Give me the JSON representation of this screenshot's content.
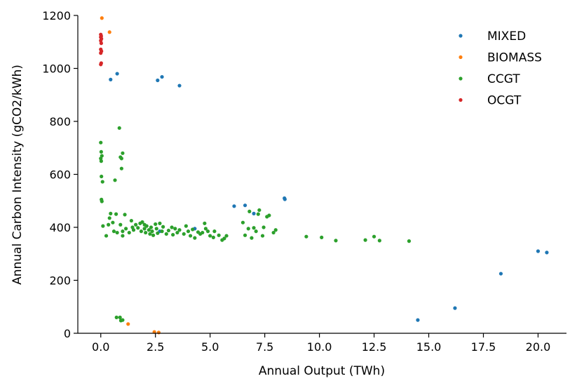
{
  "chart_data": {
    "type": "scatter",
    "xlabel": "Annual Output (TWh)",
    "ylabel": "Annual Carbon Intensity (gCO2/kWh)",
    "xlim": [
      -1.05,
      21.3
    ],
    "ylim": [
      0,
      1200
    ],
    "x_ticks": [
      "0.0",
      "2.5",
      "5.0",
      "7.5",
      "10.0",
      "12.5",
      "15.0",
      "17.5",
      "20.0"
    ],
    "y_ticks": [
      "0",
      "200",
      "400",
      "600",
      "800",
      "1000",
      "1200"
    ],
    "grid": false,
    "legend_position": "top-right",
    "series": [
      {
        "name": "MIXED",
        "color": "#1f77b4",
        "points": [
          [
            0.45,
            958
          ],
          [
            0.75,
            980
          ],
          [
            2.6,
            955
          ],
          [
            2.8,
            968
          ],
          [
            3.6,
            935
          ],
          [
            2.7,
            385
          ],
          [
            4.3,
            395
          ],
          [
            6.1,
            480
          ],
          [
            6.6,
            483
          ],
          [
            7.0,
            452
          ],
          [
            8.4,
            510
          ],
          [
            8.42,
            506
          ],
          [
            14.5,
            50
          ],
          [
            16.2,
            95
          ],
          [
            18.3,
            225
          ],
          [
            20.0,
            310
          ],
          [
            20.4,
            305
          ]
        ]
      },
      {
        "name": "BIOMASS",
        "color": "#ff7f0e",
        "points": [
          [
            0.05,
            1190
          ],
          [
            0.4,
            1137
          ],
          [
            1.25,
            35
          ],
          [
            2.45,
            5
          ],
          [
            2.65,
            3
          ]
        ]
      },
      {
        "name": "CCGT",
        "color": "#2ca02c",
        "points": [
          [
            0.0,
            720
          ],
          [
            0.02,
            685
          ],
          [
            0.05,
            670
          ],
          [
            0.0,
            660
          ],
          [
            0.02,
            650
          ],
          [
            0.03,
            592
          ],
          [
            0.08,
            572
          ],
          [
            0.03,
            505
          ],
          [
            0.05,
            498
          ],
          [
            0.1,
            405
          ],
          [
            0.25,
            368
          ],
          [
            0.35,
            410
          ],
          [
            0.4,
            435
          ],
          [
            0.45,
            452
          ],
          [
            0.55,
            418
          ],
          [
            0.6,
            385
          ],
          [
            0.65,
            578
          ],
          [
            0.7,
            450
          ],
          [
            0.75,
            380
          ],
          [
            0.85,
            775
          ],
          [
            0.9,
            665
          ],
          [
            0.95,
            660
          ],
          [
            0.95,
            622
          ],
          [
            1.0,
            680
          ],
          [
            0.9,
            410
          ],
          [
            1.0,
            385
          ],
          [
            1.1,
            448
          ],
          [
            1.15,
            395
          ],
          [
            1.0,
            368
          ],
          [
            1.3,
            380
          ],
          [
            1.4,
            425
          ],
          [
            1.45,
            400
          ],
          [
            1.5,
            390
          ],
          [
            1.6,
            410
          ],
          [
            1.7,
            398
          ],
          [
            1.8,
            415
          ],
          [
            1.85,
            385
          ],
          [
            1.9,
            420
          ],
          [
            2.0,
            410
          ],
          [
            2.0,
            395
          ],
          [
            2.05,
            380
          ],
          [
            2.1,
            405
          ],
          [
            2.2,
            390
          ],
          [
            2.25,
            375
          ],
          [
            2.3,
            400
          ],
          [
            2.35,
            385
          ],
          [
            2.4,
            370
          ],
          [
            2.5,
            412
          ],
          [
            2.55,
            395
          ],
          [
            2.6,
            378
          ],
          [
            2.7,
            415
          ],
          [
            2.8,
            385
          ],
          [
            2.85,
            402
          ],
          [
            3.0,
            375
          ],
          [
            3.1,
            388
          ],
          [
            3.25,
            400
          ],
          [
            3.3,
            372
          ],
          [
            3.4,
            395
          ],
          [
            3.5,
            380
          ],
          [
            3.6,
            390
          ],
          [
            3.8,
            375
          ],
          [
            3.9,
            405
          ],
          [
            4.0,
            385
          ],
          [
            4.1,
            368
          ],
          [
            4.2,
            392
          ],
          [
            4.3,
            360
          ],
          [
            4.45,
            382
          ],
          [
            4.55,
            375
          ],
          [
            4.65,
            380
          ],
          [
            4.75,
            415
          ],
          [
            4.8,
            395
          ],
          [
            4.9,
            385
          ],
          [
            5.0,
            368
          ],
          [
            5.15,
            362
          ],
          [
            5.2,
            385
          ],
          [
            5.4,
            370
          ],
          [
            5.55,
            352
          ],
          [
            5.65,
            358
          ],
          [
            5.75,
            368
          ],
          [
            6.5,
            418
          ],
          [
            6.6,
            370
          ],
          [
            6.75,
            395
          ],
          [
            6.8,
            460
          ],
          [
            6.9,
            360
          ],
          [
            7.0,
            398
          ],
          [
            7.1,
            385
          ],
          [
            7.2,
            450
          ],
          [
            7.25,
            465
          ],
          [
            7.4,
            368
          ],
          [
            7.45,
            400
          ],
          [
            7.6,
            440
          ],
          [
            7.7,
            445
          ],
          [
            7.9,
            380
          ],
          [
            8.0,
            390
          ],
          [
            9.4,
            365
          ],
          [
            10.1,
            362
          ],
          [
            10.75,
            350
          ],
          [
            12.1,
            352
          ],
          [
            12.5,
            365
          ],
          [
            12.75,
            350
          ],
          [
            14.1,
            348
          ],
          [
            0.72,
            60
          ],
          [
            0.88,
            60
          ],
          [
            0.92,
            48
          ],
          [
            1.0,
            50
          ]
        ]
      },
      {
        "name": "OCGT",
        "color": "#d62728",
        "points": [
          [
            0.0,
            1128
          ],
          [
            0.02,
            1122
          ],
          [
            0.0,
            1118
          ],
          [
            0.03,
            1112
          ],
          [
            0.0,
            1105
          ],
          [
            0.02,
            1095
          ],
          [
            0.0,
            1072
          ],
          [
            0.03,
            1065
          ],
          [
            0.0,
            1058
          ],
          [
            0.02,
            1020
          ],
          [
            0.0,
            1015
          ]
        ]
      }
    ]
  }
}
